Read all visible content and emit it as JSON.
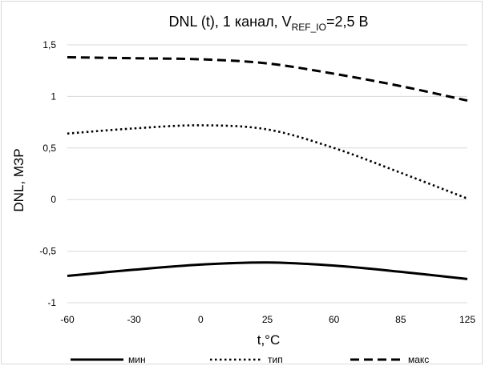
{
  "chart_data": {
    "type": "line",
    "title": {
      "prefix": "DNL (t), 1 канал, V",
      "subscript": "REF_IO",
      "suffix": "=2,5 В"
    },
    "xlabel": "t,°C",
    "ylabel": "DNL, МЗР",
    "categories": [
      "-60",
      "-30",
      "0",
      "25",
      "60",
      "85",
      "125"
    ],
    "ylim": [
      -1,
      1.5
    ],
    "yticks": [
      {
        "value": 1.5,
        "label": "1,5"
      },
      {
        "value": 1,
        "label": "1"
      },
      {
        "value": 0.5,
        "label": "0,5"
      },
      {
        "value": 0,
        "label": "0"
      },
      {
        "value": -0.5,
        "label": "-0,5"
      },
      {
        "value": -1,
        "label": "-1"
      }
    ],
    "grid": "horizontal",
    "legend": "bottom",
    "series": [
      {
        "name": "мин",
        "style": "solid",
        "color": "#000000",
        "values": [
          -0.74,
          -0.68,
          -0.63,
          -0.61,
          -0.64,
          -0.7,
          -0.77
        ]
      },
      {
        "name": "тип",
        "style": "dotted",
        "color": "#000000",
        "values": [
          0.64,
          0.69,
          0.72,
          0.68,
          0.5,
          0.26,
          0.01
        ]
      },
      {
        "name": "макс",
        "style": "dashed",
        "color": "#000000",
        "values": [
          1.38,
          1.37,
          1.36,
          1.32,
          1.22,
          1.1,
          0.96
        ]
      }
    ]
  }
}
